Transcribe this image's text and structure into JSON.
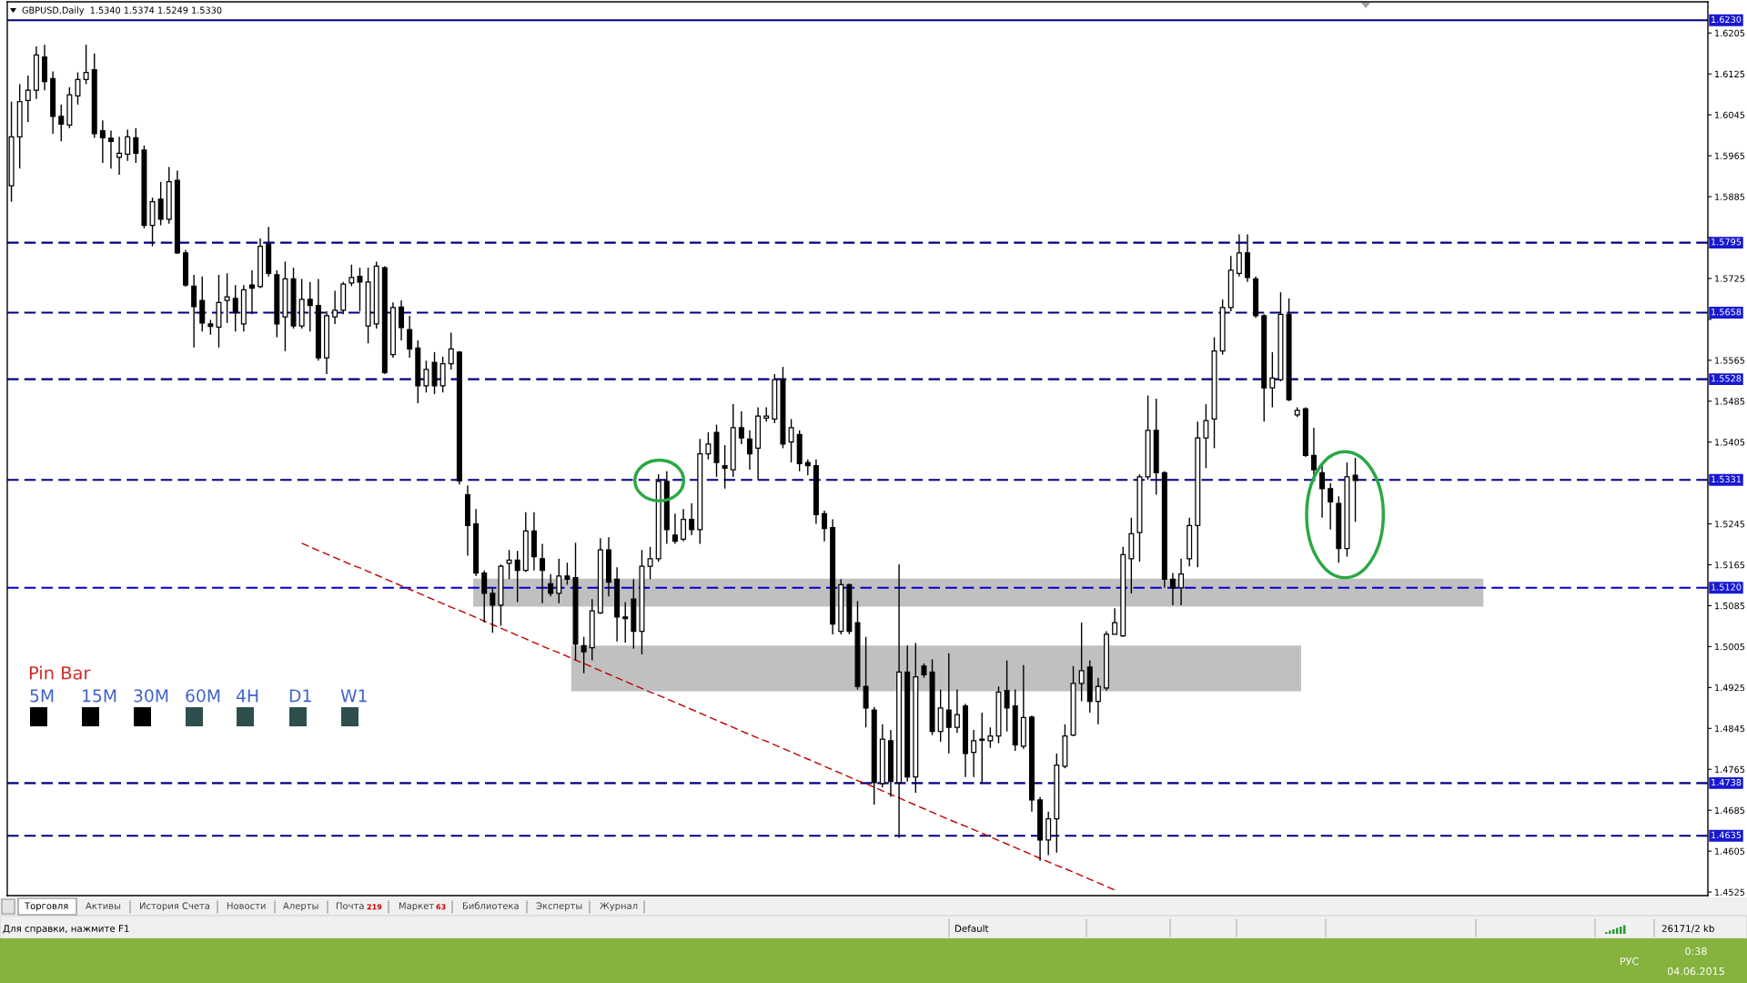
{
  "chart_data": {
    "type": "candlestick",
    "title": "GBPUSD,Daily  1.5340 1.5374 1.5249 1.5330",
    "categories": [
      null,
      null,
      null,
      null,
      null,
      null,
      null,
      null,
      null,
      null,
      null,
      null,
      null,
      null,
      null,
      null,
      null,
      null,
      null,
      null,
      null,
      null,
      null,
      null,
      null,
      null,
      null,
      null,
      null,
      null,
      null,
      null,
      null,
      null,
      null,
      null,
      null,
      null,
      null,
      null,
      null,
      null,
      null,
      null,
      null,
      null,
      null,
      null,
      null,
      null,
      null,
      null,
      null,
      null,
      null,
      null,
      null,
      null,
      null,
      null,
      null,
      null,
      null,
      null,
      null,
      null,
      null,
      null,
      null,
      null,
      null,
      null,
      null,
      null,
      null,
      null,
      null,
      null,
      null,
      null,
      null,
      null,
      null,
      null,
      null,
      null,
      null,
      null,
      null,
      null,
      null,
      null,
      null,
      null,
      null,
      null,
      null,
      null,
      null,
      null,
      null,
      null,
      null,
      null,
      null,
      null,
      null,
      null,
      null,
      null,
      null,
      null,
      null,
      null,
      null,
      null,
      null,
      null,
      null,
      null,
      null,
      null,
      null,
      null,
      null,
      null,
      null,
      null,
      null,
      null,
      null,
      null,
      null,
      null,
      null,
      null,
      null,
      null,
      null,
      null,
      null,
      null,
      null,
      null,
      null,
      null,
      null,
      null,
      null,
      null,
      null,
      null,
      null,
      null,
      null,
      null,
      null,
      null,
      null,
      null,
      null,
      null,
      null,
      null,
      null,
      null,
      null,
      null,
      null,
      null,
      null,
      null,
      null,
      null,
      null,
      null,
      null,
      null,
      null,
      null,
      null,
      null,
      null,
      null,
      null,
      null,
      null,
      null,
      null,
      null,
      null,
      null,
      null,
      null,
      null,
      null,
      null,
      null,
      null,
      null,
      null,
      null,
      null,
      null,
      null
    ],
    "ohlc": [
      [
        1.5906,
        1.6071,
        1.5875,
        1.6002
      ],
      [
        1.6002,
        1.6105,
        1.594,
        1.6071
      ],
      [
        1.6073,
        1.6122,
        1.6031,
        1.6093
      ],
      [
        1.6093,
        1.6179,
        1.6076,
        1.6162
      ],
      [
        1.6158,
        1.6182,
        1.6093,
        1.611
      ],
      [
        1.6116,
        1.613,
        1.6008,
        1.6042
      ],
      [
        1.6042,
        1.6065,
        1.5993,
        1.6027
      ],
      [
        1.6025,
        1.6099,
        1.6019,
        1.6084
      ],
      [
        1.6082,
        1.6128,
        1.6065,
        1.6114
      ],
      [
        1.6114,
        1.6182,
        1.6105,
        1.6128
      ],
      [
        1.6133,
        1.6165,
        1.6,
        1.6008
      ],
      [
        1.6014,
        1.6034,
        1.5951,
        1.6
      ],
      [
        1.5999,
        1.6014,
        1.594,
        1.5993
      ],
      [
        1.5962,
        1.6002,
        1.5928,
        1.597
      ],
      [
        1.5968,
        1.6016,
        1.5955,
        1.6002
      ],
      [
        1.6,
        1.6019,
        1.5951,
        1.597
      ],
      [
        1.5976,
        1.5985,
        1.5823,
        1.5829
      ],
      [
        1.5829,
        1.5883,
        1.5788,
        1.5875
      ],
      [
        1.588,
        1.5914,
        1.5829,
        1.5841
      ],
      [
        1.5841,
        1.5943,
        1.5832,
        1.5914
      ],
      [
        1.5917,
        1.5936,
        1.5773,
        1.5775
      ],
      [
        1.5775,
        1.5781,
        1.5709,
        1.5712
      ],
      [
        1.571,
        1.5732,
        1.559,
        1.567
      ],
      [
        1.5682,
        1.5729,
        1.5621,
        1.5638
      ],
      [
        1.5636,
        1.5644,
        1.5615,
        1.5631
      ],
      [
        1.563,
        1.5732,
        1.559,
        1.5678
      ],
      [
        1.5682,
        1.5735,
        1.5638,
        1.5689
      ],
      [
        1.5686,
        1.5712,
        1.5621,
        1.5659
      ],
      [
        1.5636,
        1.5712,
        1.5621,
        1.5703
      ],
      [
        1.5712,
        1.5741,
        1.5655,
        1.5706
      ],
      [
        1.5709,
        1.5803,
        1.5706,
        1.5788
      ],
      [
        1.5792,
        1.5826,
        1.5729,
        1.5735
      ],
      [
        1.5732,
        1.5741,
        1.561,
        1.5636
      ],
      [
        1.565,
        1.5758,
        1.5583,
        1.5724
      ],
      [
        1.5724,
        1.5746,
        1.5627,
        1.5632
      ],
      [
        1.5632,
        1.5724,
        1.5627,
        1.5684
      ],
      [
        1.5684,
        1.5718,
        1.5621,
        1.5672
      ],
      [
        1.5672,
        1.5724,
        1.5564,
        1.557
      ],
      [
        1.557,
        1.5661,
        1.5538,
        1.5652
      ],
      [
        1.565,
        1.5701,
        1.5636,
        1.5663
      ],
      [
        1.5663,
        1.5718,
        1.5655,
        1.5714
      ],
      [
        1.5716,
        1.5752,
        1.571,
        1.5727
      ],
      [
        1.5729,
        1.5746,
        1.5661,
        1.5718
      ],
      [
        1.5632,
        1.5746,
        1.5598,
        1.5718
      ],
      [
        1.5636,
        1.5758,
        1.5627,
        1.5749
      ],
      [
        1.5746,
        1.5749,
        1.5538,
        1.5541
      ],
      [
        1.5576,
        1.5678,
        1.557,
        1.5668
      ],
      [
        1.5669,
        1.5682,
        1.5604,
        1.5629
      ],
      [
        1.5625,
        1.5652,
        1.557,
        1.5587
      ],
      [
        1.5589,
        1.5604,
        1.5481,
        1.5515
      ],
      [
        1.5515,
        1.5564,
        1.5502,
        1.5547
      ],
      [
        1.5561,
        1.5581,
        1.5499,
        1.5515
      ],
      [
        1.5515,
        1.5572,
        1.5502,
        1.5558
      ],
      [
        1.5558,
        1.5619,
        1.5547,
        1.5587
      ],
      [
        1.5581,
        1.5583,
        1.5322,
        1.5329
      ],
      [
        1.5302,
        1.532,
        1.5183,
        1.5242
      ],
      [
        1.5245,
        1.5274,
        1.5143,
        1.5149
      ],
      [
        1.5149,
        1.5154,
        1.5052,
        1.5109
      ],
      [
        1.5109,
        1.512,
        1.5032,
        1.5086
      ],
      [
        1.5086,
        1.5166,
        1.5046,
        1.5162
      ],
      [
        1.5168,
        1.5194,
        1.5137,
        1.5174
      ],
      [
        1.5174,
        1.5192,
        1.5092,
        1.5154
      ],
      [
        1.5154,
        1.5268,
        1.5151,
        1.5231
      ],
      [
        1.5231,
        1.5268,
        1.5154,
        1.5181
      ],
      [
        1.5177,
        1.5206,
        1.509,
        1.5154
      ],
      [
        1.5128,
        1.5147,
        1.5103,
        1.5109
      ],
      [
        1.5109,
        1.5177,
        1.509,
        1.5143
      ],
      [
        1.5143,
        1.5169,
        1.5126,
        1.5137
      ],
      [
        1.514,
        1.5208,
        1.4978,
        1.501
      ],
      [
        1.5007,
        1.5024,
        1.4953,
        1.4995
      ],
      [
        1.5003,
        1.5098,
        1.4978,
        1.5075
      ],
      [
        1.5071,
        1.5217,
        1.5069,
        1.5194
      ],
      [
        1.5194,
        1.5219,
        1.5103,
        1.5131
      ],
      [
        1.5137,
        1.516,
        1.5015,
        1.5063
      ],
      [
        1.5063,
        1.5092,
        1.5013,
        1.506
      ],
      [
        1.5098,
        1.5137,
        1.5001,
        1.5035
      ],
      [
        1.5035,
        1.5194,
        1.499,
        1.5162
      ],
      [
        1.5162,
        1.52,
        1.5137,
        1.5177
      ],
      [
        1.5177,
        1.5342,
        1.5171,
        1.5328
      ],
      [
        1.5328,
        1.5348,
        1.5206,
        1.5234
      ],
      [
        1.5223,
        1.5265,
        1.5206,
        1.5211
      ],
      [
        1.5215,
        1.5274,
        1.5211,
        1.5254
      ],
      [
        1.5254,
        1.5285,
        1.5223,
        1.5234
      ],
      [
        1.5234,
        1.5411,
        1.5206,
        1.5382
      ],
      [
        1.5382,
        1.5424,
        1.5371,
        1.5401
      ],
      [
        1.5424,
        1.5439,
        1.5337,
        1.5365
      ],
      [
        1.5359,
        1.5399,
        1.5314,
        1.5354
      ],
      [
        1.5351,
        1.5479,
        1.5337,
        1.5433
      ],
      [
        1.5433,
        1.5465,
        1.5401,
        1.5413
      ],
      [
        1.5411,
        1.5428,
        1.5351,
        1.5382
      ],
      [
        1.5393,
        1.5473,
        1.5331,
        1.5456
      ],
      [
        1.5452,
        1.5473,
        1.5445,
        1.5456
      ],
      [
        1.545,
        1.5538,
        1.5442,
        1.5527
      ],
      [
        1.5527,
        1.5552,
        1.5393,
        1.5401
      ],
      [
        1.5405,
        1.545,
        1.5365,
        1.5433
      ],
      [
        1.542,
        1.5428,
        1.5348,
        1.5363
      ],
      [
        1.5365,
        1.5371,
        1.534,
        1.5359
      ],
      [
        1.5359,
        1.5371,
        1.5245,
        1.5263
      ],
      [
        1.5265,
        1.5271,
        1.5211,
        1.5236
      ],
      [
        1.5238,
        1.5254,
        1.5029,
        1.5049
      ],
      [
        1.5035,
        1.5137,
        1.5029,
        1.5126
      ],
      [
        1.5126,
        1.5128,
        1.5029,
        1.5035
      ],
      [
        1.5052,
        1.5094,
        1.4921,
        1.4927
      ],
      [
        1.4927,
        1.5024,
        1.4847,
        1.4885
      ],
      [
        1.4881,
        1.4887,
        1.4696,
        1.4739
      ],
      [
        1.4737,
        1.4853,
        1.473,
        1.4824
      ],
      [
        1.4821,
        1.4842,
        1.4711,
        1.4741
      ],
      [
        1.4739,
        1.5166,
        1.4631,
        1.4955
      ],
      [
        1.4955,
        1.5007,
        1.4741,
        1.475
      ],
      [
        1.475,
        1.5012,
        1.4719,
        1.4946
      ],
      [
        1.4967,
        1.4972,
        1.4944,
        1.495
      ],
      [
        1.4955,
        1.498,
        1.4832,
        1.4839
      ],
      [
        1.4839,
        1.4921,
        1.4819,
        1.4885
      ],
      [
        1.4881,
        1.4992,
        1.4796,
        1.4847
      ],
      [
        1.4847,
        1.4921,
        1.4836,
        1.4872
      ],
      [
        1.4889,
        1.4893,
        1.475,
        1.4796
      ],
      [
        1.4798,
        1.4842,
        1.475,
        1.4821
      ],
      [
        1.4824,
        1.4876,
        1.4739,
        1.4822
      ],
      [
        1.4821,
        1.4847,
        1.4807,
        1.483
      ],
      [
        1.483,
        1.4927,
        1.4816,
        1.4916
      ],
      [
        1.4919,
        1.4978,
        1.4839,
        1.4885
      ],
      [
        1.4889,
        1.4921,
        1.4801,
        1.4813
      ],
      [
        1.481,
        1.4969,
        1.4805,
        1.4866
      ],
      [
        1.4867,
        1.487,
        1.4682,
        1.4705
      ],
      [
        1.4705,
        1.4711,
        1.4586,
        1.4627
      ],
      [
        1.4627,
        1.4682,
        1.4597,
        1.4668
      ],
      [
        1.4668,
        1.4796,
        1.4602,
        1.4773
      ],
      [
        1.4771,
        1.4853,
        1.4767,
        1.483
      ],
      [
        1.4832,
        1.4967,
        1.483,
        1.4933
      ],
      [
        1.4933,
        1.5052,
        1.4898,
        1.4958
      ],
      [
        1.4965,
        1.4978,
        1.4876,
        1.4898
      ],
      [
        1.4898,
        1.4944,
        1.4853,
        1.4927
      ],
      [
        1.4924,
        1.5035,
        1.4919,
        1.5029
      ],
      [
        1.5029,
        1.508,
        1.5029,
        1.5052
      ],
      [
        1.5026,
        1.52,
        1.5024,
        1.5185
      ],
      [
        1.5177,
        1.5257,
        1.5109,
        1.5226
      ],
      [
        1.5228,
        1.5342,
        1.5171,
        1.5337
      ],
      [
        1.5337,
        1.5496,
        1.5331,
        1.5428
      ],
      [
        1.5428,
        1.549,
        1.5302,
        1.5345
      ],
      [
        1.5345,
        1.5348,
        1.512,
        1.5137
      ],
      [
        1.5137,
        1.5149,
        1.5086,
        1.512
      ],
      [
        1.512,
        1.5177,
        1.5086,
        1.5147
      ],
      [
        1.5177,
        1.5257,
        1.5162,
        1.5242
      ],
      [
        1.5242,
        1.5445,
        1.516,
        1.5413
      ],
      [
        1.5413,
        1.5479,
        1.5354,
        1.5447
      ],
      [
        1.545,
        1.561,
        1.5393,
        1.5583
      ],
      [
        1.5583,
        1.5684,
        1.5576,
        1.5668
      ],
      [
        1.5668,
        1.5769,
        1.5661,
        1.5741
      ],
      [
        1.5735,
        1.5811,
        1.5729,
        1.5775
      ],
      [
        1.5775,
        1.5811,
        1.5718,
        1.5727
      ],
      [
        1.5724,
        1.5729,
        1.5648,
        1.5652
      ],
      [
        1.5652,
        1.5655,
        1.5445,
        1.5511
      ],
      [
        1.5511,
        1.5581,
        1.5473,
        1.553
      ],
      [
        1.5527,
        1.5698,
        1.5524,
        1.5655
      ],
      [
        1.5655,
        1.5686,
        1.5485,
        1.5488
      ],
      [
        1.5458,
        1.5473,
        1.5454,
        1.5467
      ],
      [
        1.547,
        1.5473,
        1.5376,
        1.5379
      ],
      [
        1.5379,
        1.5433,
        1.5329,
        1.5351
      ],
      [
        1.5345,
        1.5359,
        1.5257,
        1.5314
      ],
      [
        1.5314,
        1.5325,
        1.5234,
        1.5288
      ],
      [
        1.5285,
        1.5299,
        1.5169,
        1.5197
      ],
      [
        1.5197,
        1.5365,
        1.5181,
        1.5337
      ],
      [
        1.534,
        1.5374,
        1.5249,
        1.533
      ],
      null,
      null,
      null,
      null,
      null,
      null,
      null,
      null,
      null,
      null,
      null,
      null,
      null,
      null,
      null,
      null,
      null,
      null,
      null,
      null,
      null,
      null,
      null,
      null,
      null,
      null,
      null,
      null,
      null,
      null,
      null,
      null,
      null,
      null,
      null,
      null,
      null,
      null,
      null,
      null,
      null,
      null
    ],
    "series": [
      {
        "type": "line",
        "color": "#c00000",
        "line_style": "dashed",
        "values": [
          null,
          null,
          null,
          null,
          null,
          null,
          null,
          null,
          null,
          null,
          null,
          null,
          null,
          null,
          null,
          null,
          null,
          null,
          null,
          null,
          null,
          null,
          null,
          null,
          null,
          null,
          null,
          null,
          null,
          null,
          null,
          null,
          null,
          null,
          null,
          1.5207,
          1.52,
          1.5193,
          1.5186,
          1.5179,
          1.5172,
          1.5165,
          1.5159,
          1.5152,
          1.5145,
          1.5138,
          1.5131,
          1.5124,
          1.5117,
          1.511,
          1.5103,
          1.5096,
          1.5089,
          1.5082,
          1.5076,
          1.5069,
          1.5062,
          1.5055,
          1.5048,
          1.5041,
          1.5034,
          1.5027,
          1.502,
          1.5013,
          1.5006,
          1.4999,
          1.4993,
          1.4986,
          1.4979,
          1.4972,
          1.4965,
          1.4958,
          1.4951,
          1.4944,
          1.4937,
          1.493,
          1.4923,
          1.4916,
          1.491,
          1.4903,
          1.4896,
          1.4889,
          1.4882,
          1.4875,
          1.4868,
          1.4861,
          1.4854,
          1.4847,
          1.484,
          1.4833,
          1.4826,
          1.482,
          1.4813,
          1.4806,
          1.4799,
          1.4792,
          1.4785,
          1.4778,
          1.4771,
          1.4764,
          1.4757,
          1.475,
          1.4743,
          1.4737,
          1.473,
          1.4723,
          1.4716,
          1.4709,
          1.4702,
          1.4695,
          1.4688,
          1.4681,
          1.4674,
          1.4667,
          1.466,
          1.4654,
          1.4647,
          1.464,
          1.4633,
          1.4626,
          1.4619,
          1.4612,
          1.4605,
          1.4598,
          1.4591,
          1.4584,
          1.4577,
          1.4571,
          1.4564,
          1.4557,
          1.455,
          1.4543,
          1.4536,
          1.4529,
          null,
          null,
          null,
          null,
          null,
          null,
          null,
          null,
          null,
          null,
          null,
          null,
          null,
          null,
          null,
          null,
          null,
          null,
          null,
          null,
          null,
          null,
          null,
          null,
          null,
          null,
          null,
          null,
          null,
          null,
          null,
          null,
          null,
          null,
          null,
          null,
          null,
          null,
          null,
          null,
          null,
          null,
          null,
          null,
          null,
          null,
          null,
          null,
          null,
          null,
          null,
          null,
          null,
          null,
          null,
          null,
          null,
          null,
          null,
          null,
          null,
          null,
          null,
          null,
          null,
          null,
          null,
          null,
          null,
          null,
          null
        ]
      }
    ],
    "ylim": [
      1.4518,
      1.6266
    ],
    "yticks": [
      1.6205,
      1.6125,
      1.6045,
      1.5965,
      1.5885,
      {
        "value": 1.5805,
        "label": null
      },
      1.5725,
      {
        "value": 1.5645,
        "label": null
      },
      1.5565,
      1.5485,
      1.5405,
      {
        "value": 1.5325,
        "label": null
      },
      1.5245,
      1.5165,
      1.5085,
      1.5005,
      1.4925,
      1.4845,
      1.4765,
      1.4685,
      1.4605,
      1.4525
    ],
    "tick_labels": "y",
    "ref_lines": [
      {
        "axis": "y",
        "value": 1.623,
        "label": "1.6230",
        "color": "#000080",
        "line_style": "solid"
      },
      {
        "axis": "y",
        "value": 1.5795,
        "label": "1.5795",
        "color": "#000080",
        "line_style": "dashed"
      },
      {
        "axis": "y",
        "value": 1.5658,
        "label": "1.5658",
        "color": "#000080",
        "line_style": "dashed"
      },
      {
        "axis": "y",
        "value": 1.5528,
        "label": "1.5528",
        "color": "#000080",
        "line_style": "dashed"
      },
      {
        "axis": "y",
        "value": 1.5331,
        "label": "1.5331",
        "color": "#000080",
        "line_style": "dashed"
      },
      {
        "axis": "y",
        "value": 1.512,
        "label": "1.5120",
        "color": "#0000cd",
        "line_style": "dashed"
      },
      {
        "axis": "y",
        "value": 1.4738,
        "label": "1.4738",
        "color": "#000080",
        "line_style": "dashed"
      },
      {
        "axis": "y",
        "value": 1.4635,
        "label": "1.4635",
        "color": "#000080",
        "line_style": "dashed"
      }
    ],
    "annotations": [
      "Pin Bar",
      "5M",
      "15M",
      "30M",
      "60M",
      "4H",
      "D1",
      "W1",
      "Торговля",
      "Активы",
      "История Счета",
      "Новости",
      "Алерты",
      "Почта",
      "219",
      "Маркет",
      "63",
      "Библиотека",
      "Эксперты",
      "Журнал",
      "Для справки, нажмите F1",
      "Default",
      "26171/2 kb",
      "РУС",
      "0:38",
      "04.06.2015"
    ]
  }
}
